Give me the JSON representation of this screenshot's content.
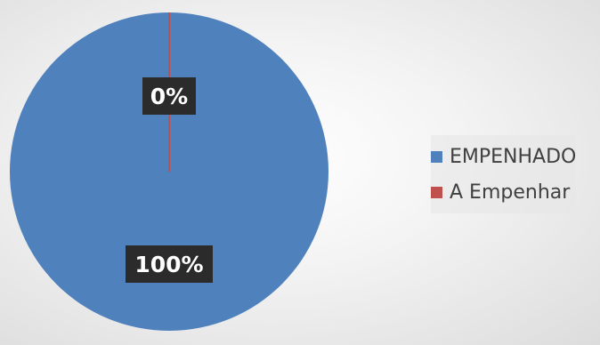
{
  "chart_data": {
    "type": "pie",
    "categories": [
      "EMPENHADO",
      "A Empenhar"
    ],
    "values": [
      100,
      0
    ],
    "data_labels": [
      "100%",
      "0%"
    ],
    "colors": [
      "#4F81BD",
      "#C0504D"
    ],
    "legend_position": "right",
    "title": ""
  }
}
